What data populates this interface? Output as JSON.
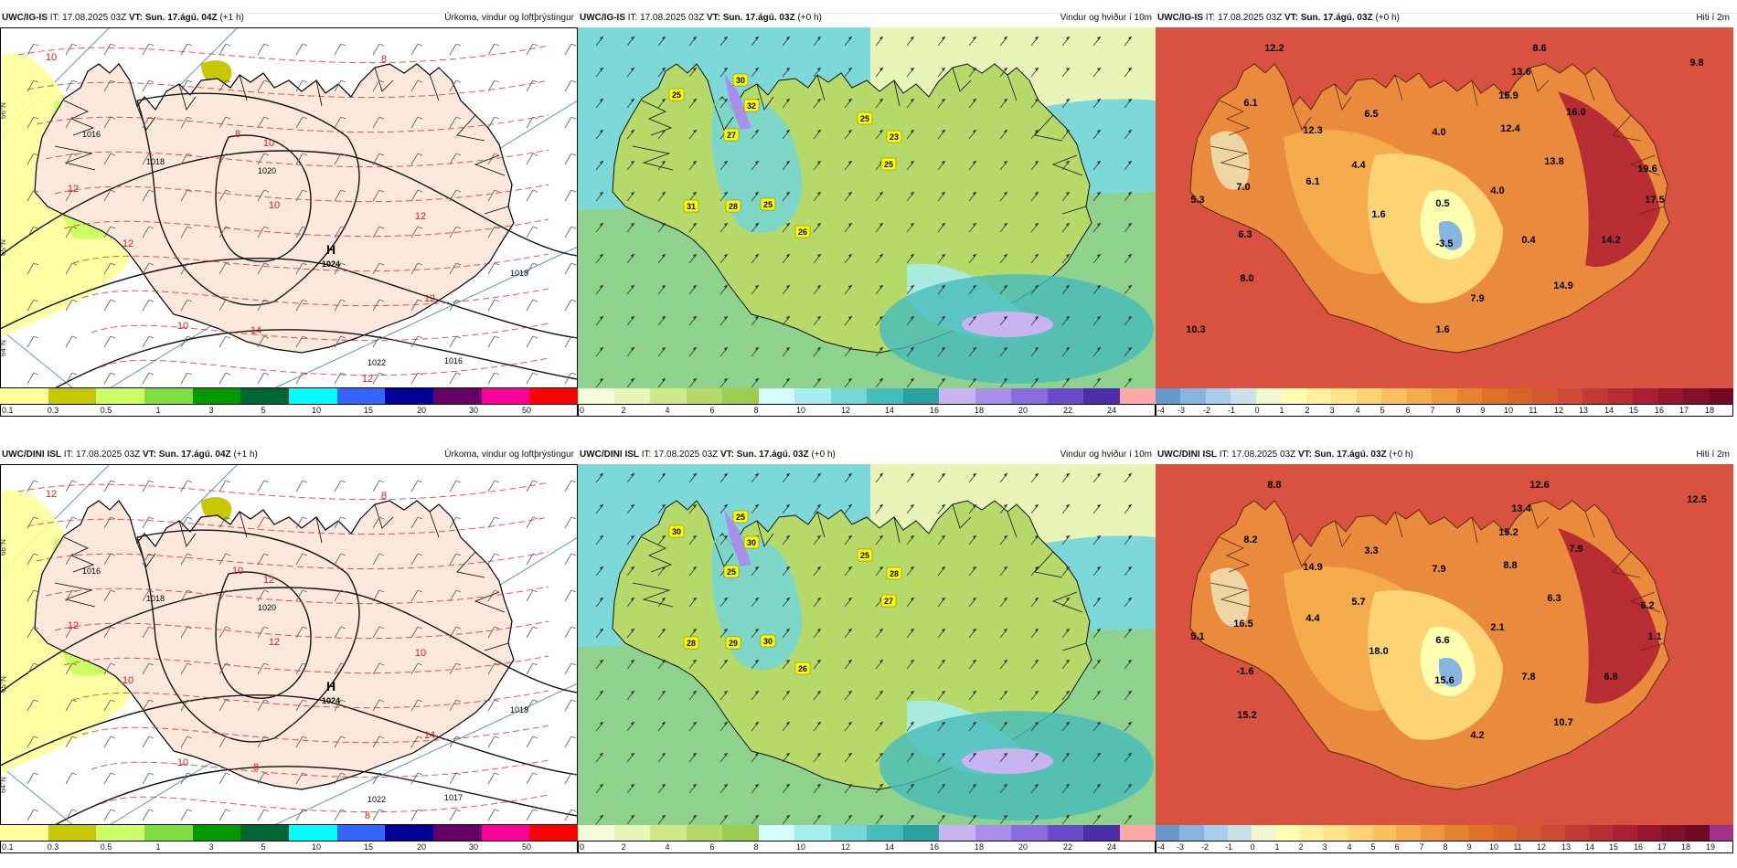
{
  "panels": [
    {
      "id": "r1c1",
      "model": "UWC/IG-IS",
      "it_label": "IT:",
      "it_value": "17.08.2025 03Z",
      "vt_label": "VT:",
      "vt_value": "Sun. 17.ágú. 04Z",
      "lead": "(+1 h)",
      "title": "Úrkoma, vindur og loftþrýstingur",
      "type": "precip",
      "colorbar": [
        "0.1",
        "0.3",
        "0.5",
        "1",
        "3",
        "5",
        "10",
        "15",
        "20",
        "30",
        "50"
      ],
      "colors": [
        "#ffff99",
        "#c8c800",
        "#ccff66",
        "#7fdf3f",
        "#009900",
        "#006633",
        "#00ffff",
        "#3366ff",
        "#000099",
        "#660066",
        "#ff0099",
        "#ff0000"
      ],
      "labels": [
        {
          "text": "1024",
          "kind": "pressure"
        },
        {
          "text": "1018",
          "kind": "pressure"
        },
        {
          "text": "1018",
          "kind": "pressure"
        },
        {
          "text": "1016",
          "kind": "pressure"
        },
        {
          "text": "1020",
          "kind": "pressure"
        },
        {
          "text": "1022",
          "kind": "pressure"
        },
        {
          "text": "1016",
          "kind": "pressure"
        },
        {
          "text": "H",
          "kind": "high"
        },
        {
          "text": "8",
          "kind": "temp"
        },
        {
          "text": "10",
          "kind": "temp"
        },
        {
          "text": "12",
          "kind": "temp"
        },
        {
          "text": "14",
          "kind": "temp"
        },
        {
          "text": "12",
          "kind": "temp"
        },
        {
          "text": "10",
          "kind": "temp"
        },
        {
          "text": "8",
          "kind": "temp"
        },
        {
          "text": "12",
          "kind": "temp"
        },
        {
          "text": "10",
          "kind": "temp"
        },
        {
          "text": "10",
          "kind": "temp"
        },
        {
          "text": "12",
          "kind": "temp"
        },
        {
          "text": "12",
          "kind": "temp"
        }
      ],
      "lat_labels": [
        "66°N",
        "65°N",
        "64°N"
      ]
    },
    {
      "id": "r1c2",
      "model": "UWC/IG-IS",
      "it_label": "IT:",
      "it_value": "17.08.2025 03Z",
      "vt_label": "VT:",
      "vt_value": "Sun. 17.ágú. 03Z",
      "lead": "(+0 h)",
      "title": "Vindur og hviður í 10m",
      "type": "wind",
      "colorbar": [
        "0",
        "2",
        "4",
        "6",
        "8",
        "10",
        "12",
        "14",
        "16",
        "18",
        "20",
        "22",
        "24"
      ],
      "colors": [
        "#f5fad8",
        "#e8f4b8",
        "#cfe88a",
        "#b5da6a",
        "#9ccc50",
        "#d4fcfc",
        "#a6eded",
        "#74d6d6",
        "#47bcbc",
        "#2aa0a0",
        "#c8b4f0",
        "#a890ea",
        "#8a6cde",
        "#6a4cc8",
        "#4a2fa8",
        "#ffa8a8"
      ],
      "labels": [
        {
          "text": "30"
        },
        {
          "text": "25"
        },
        {
          "text": "32"
        },
        {
          "text": "27"
        },
        {
          "text": "25"
        },
        {
          "text": "23"
        },
        {
          "text": "25"
        },
        {
          "text": "31"
        },
        {
          "text": "28"
        },
        {
          "text": "25"
        },
        {
          "text": "26"
        }
      ]
    },
    {
      "id": "r1c3",
      "model": "UWC/IG-IS",
      "it_label": "IT:",
      "it_value": "17.08.2025 03Z",
      "vt_label": "VT:",
      "vt_value": "Sun. 17.ágú. 03Z",
      "lead": "(+0 h)",
      "title": "Hiti í 2m",
      "type": "temp",
      "colorbar": [
        "-4",
        "-3",
        "-2",
        "-1",
        "0",
        "1",
        "2",
        "3",
        "4",
        "5",
        "6",
        "7",
        "8",
        "9",
        "10",
        "11",
        "12",
        "13",
        "14",
        "15",
        "16",
        "17",
        "18"
      ],
      "colors": [
        "#6699cc",
        "#88b4e0",
        "#aaccee",
        "#cce0ea",
        "#eef7cf",
        "#ffffb0",
        "#fff0a0",
        "#ffe38a",
        "#fdd475",
        "#f9c160",
        "#f4ab4c",
        "#ee973c",
        "#e6832e",
        "#df7126",
        "#d9642a",
        "#d45830",
        "#cd4a34",
        "#c33a35",
        "#b82c34",
        "#aa2032",
        "#97162f",
        "#84102c",
        "#700a27"
      ],
      "labels": [
        {
          "text": "12.2"
        },
        {
          "text": "8.6"
        },
        {
          "text": "9.8"
        },
        {
          "text": "13.6"
        },
        {
          "text": "6.1"
        },
        {
          "text": "15.9"
        },
        {
          "text": "16.0"
        },
        {
          "text": "6.5"
        },
        {
          "text": "12.3"
        },
        {
          "text": "4.0"
        },
        {
          "text": "12.4"
        },
        {
          "text": "19.6"
        },
        {
          "text": "4.4"
        },
        {
          "text": "13.8"
        },
        {
          "text": "7.0"
        },
        {
          "text": "6.1"
        },
        {
          "text": "5.3"
        },
        {
          "text": "4.0"
        },
        {
          "text": "17.5"
        },
        {
          "text": "1.6"
        },
        {
          "text": "0.5"
        },
        {
          "text": "6.3"
        },
        {
          "text": "-3.5"
        },
        {
          "text": "0.4"
        },
        {
          "text": "14.2"
        },
        {
          "text": "8.0"
        },
        {
          "text": "14.9"
        },
        {
          "text": "7.9"
        },
        {
          "text": "10.3"
        },
        {
          "text": "1.6"
        }
      ]
    },
    {
      "id": "r2c1",
      "model": "UWC/DINI ISL",
      "it_label": "IT:",
      "it_value": "17.08.2025 03Z",
      "vt_label": "VT:",
      "vt_value": "Sun. 17.ágú. 04Z",
      "lead": "(+1 h)",
      "title": "Úrkoma, vindur og loftþrýstingur",
      "type": "precip",
      "colorbar": [
        "0.1",
        "0.3",
        "0.5",
        "1",
        "3",
        "5",
        "10",
        "15",
        "20",
        "30",
        "50"
      ],
      "colors": [
        "#ffff99",
        "#c8c800",
        "#ccff66",
        "#7fdf3f",
        "#009900",
        "#006633",
        "#00ffff",
        "#3366ff",
        "#000099",
        "#660066",
        "#ff0099",
        "#ff0000"
      ],
      "labels": [
        {
          "text": "1024",
          "kind": "pressure"
        },
        {
          "text": "1018",
          "kind": "pressure"
        },
        {
          "text": "1018",
          "kind": "pressure"
        },
        {
          "text": "1017",
          "kind": "pressure"
        },
        {
          "text": "1020",
          "kind": "pressure"
        },
        {
          "text": "1022",
          "kind": "pressure"
        },
        {
          "text": "1016",
          "kind": "pressure"
        },
        {
          "text": "H",
          "kind": "high"
        },
        {
          "text": "10",
          "kind": "temp"
        },
        {
          "text": "12",
          "kind": "temp"
        },
        {
          "text": "14",
          "kind": "temp"
        },
        {
          "text": "8",
          "kind": "temp"
        },
        {
          "text": "10",
          "kind": "temp"
        },
        {
          "text": "12",
          "kind": "temp"
        },
        {
          "text": "8",
          "kind": "temp"
        },
        {
          "text": "10",
          "kind": "temp"
        },
        {
          "text": "12",
          "kind": "temp"
        },
        {
          "text": "10",
          "kind": "temp"
        },
        {
          "text": "8",
          "kind": "temp"
        },
        {
          "text": "12",
          "kind": "temp"
        }
      ],
      "lat_labels": [
        "66°N",
        "65°N",
        "64°N"
      ]
    },
    {
      "id": "r2c2",
      "model": "UWC/DINI ISL",
      "it_label": "IT:",
      "it_value": "17.08.2025 03Z",
      "vt_label": "VT:",
      "vt_value": "Sun. 17.ágú. 03Z",
      "lead": "(+0 h)",
      "title": "Vindur og hviður í 10m",
      "type": "wind",
      "colorbar": [
        "0",
        "2",
        "4",
        "6",
        "8",
        "10",
        "12",
        "14",
        "16",
        "18",
        "20",
        "22",
        "24"
      ],
      "colors": [
        "#f5fad8",
        "#e8f4b8",
        "#cfe88a",
        "#b5da6a",
        "#9ccc50",
        "#d4fcfc",
        "#a6eded",
        "#74d6d6",
        "#47bcbc",
        "#2aa0a0",
        "#c8b4f0",
        "#a890ea",
        "#8a6cde",
        "#6a4cc8",
        "#4a2fa8",
        "#ffa8a8"
      ],
      "labels": [
        {
          "text": "25"
        },
        {
          "text": "30"
        },
        {
          "text": "30"
        },
        {
          "text": "25"
        },
        {
          "text": "25"
        },
        {
          "text": "28"
        },
        {
          "text": "27"
        },
        {
          "text": "28"
        },
        {
          "text": "29"
        },
        {
          "text": "30"
        },
        {
          "text": "26"
        }
      ]
    },
    {
      "id": "r2c3",
      "model": "UWC/DINI ISL",
      "it_label": "IT:",
      "it_value": "17.08.2025 03Z",
      "vt_label": "VT:",
      "vt_value": "Sun. 17.ágú. 03Z",
      "lead": "(+0 h)",
      "title": "Hiti í 2m",
      "type": "temp",
      "colorbar": [
        "-4",
        "-3",
        "-2",
        "-1",
        "0",
        "1",
        "2",
        "3",
        "4",
        "5",
        "6",
        "7",
        "8",
        "9",
        "10",
        "11",
        "12",
        "13",
        "14",
        "15",
        "16",
        "17",
        "18",
        "19"
      ],
      "colors": [
        "#6699cc",
        "#88b4e0",
        "#aaccee",
        "#cce0ea",
        "#eef7cf",
        "#ffffb0",
        "#fff0a0",
        "#ffe38a",
        "#fdd475",
        "#f9c160",
        "#f4ab4c",
        "#ee973c",
        "#e6832e",
        "#df7126",
        "#d9642a",
        "#d45830",
        "#cd4a34",
        "#c33a35",
        "#b82c34",
        "#aa2032",
        "#97162f",
        "#84102c",
        "#700a27",
        "#a0308a"
      ],
      "labels": [
        {
          "text": "8.8"
        },
        {
          "text": "12.6"
        },
        {
          "text": "12.5"
        },
        {
          "text": "13.4"
        },
        {
          "text": "8.2"
        },
        {
          "text": "15.2"
        },
        {
          "text": "7.9"
        },
        {
          "text": "3.3"
        },
        {
          "text": "14.9"
        },
        {
          "text": "7.9"
        },
        {
          "text": "8.8"
        },
        {
          "text": "6.2"
        },
        {
          "text": "5.7"
        },
        {
          "text": "6.3"
        },
        {
          "text": "16.5"
        },
        {
          "text": "4.4"
        },
        {
          "text": "5.1"
        },
        {
          "text": "2.1"
        },
        {
          "text": "1.1"
        },
        {
          "text": "18.0"
        },
        {
          "text": "6.6"
        },
        {
          "text": "-1.6"
        },
        {
          "text": "15.6"
        },
        {
          "text": "7.8"
        },
        {
          "text": "6.8"
        },
        {
          "text": "15.2"
        },
        {
          "text": "10.7"
        },
        {
          "text": "4.2"
        }
      ]
    }
  ]
}
